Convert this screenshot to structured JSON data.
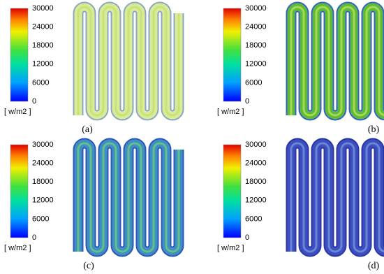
{
  "panels": [
    {
      "label": "(a)",
      "colorbar": {
        "ticks": [
          "30000",
          "24000",
          "18000",
          "12000",
          "6000",
          "0"
        ],
        "unit": "[ w/m2 ]"
      }
    },
    {
      "label": "(b)",
      "colorbar": {
        "ticks": [
          "30000",
          "24000",
          "18000",
          "12000",
          "6000",
          "0"
        ],
        "unit": "[ w/m2 ]"
      }
    },
    {
      "label": "(c)",
      "colorbar": {
        "ticks": [
          "30000",
          "24000",
          "18000",
          "12000",
          "6000",
          "0"
        ],
        "unit": "[ w/m2 ]"
      }
    },
    {
      "label": "(d)",
      "colorbar": {
        "ticks": [
          "30000",
          "24000",
          "18000",
          "12000",
          "6000",
          "0"
        ],
        "unit": "[ w/m2 ]"
      }
    }
  ]
}
